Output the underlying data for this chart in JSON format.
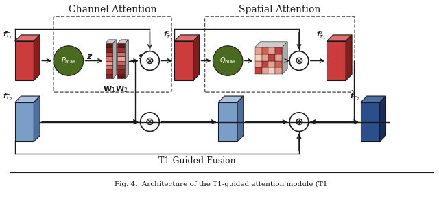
{
  "channel_attention_label": "Channel Attention",
  "spatial_attention_label": "Spatial Attention",
  "t1guided_label": "T1-Guided Fusion",
  "caption": "Fig. 4.  Architecture of the T1-guided attention module (T1",
  "bg_color": "#ffffff",
  "red_face": "#cd3c3c",
  "red_side": "#8b1a1a",
  "red_top": "#e07070",
  "blue_face_lt": "#7b9ec8",
  "blue_side_lt": "#4a6ea0",
  "blue_top_lt": "#aac0dc",
  "blue_face_dk": "#2c4e8a",
  "blue_side_dk": "#1a2e5a",
  "blue_top_dk": "#4a6ea0",
  "green_ellipse": "#4a6a20",
  "bar1_colors": [
    "#8b2020",
    "#b03030",
    "#e07070",
    "#f0a090",
    "#e07070",
    "#c04040",
    "#8b2020",
    "#701010"
  ],
  "bar2_colors": [
    "#701010",
    "#8b2020",
    "#a03030",
    "#c86060",
    "#f0a090",
    "#d07070",
    "#a03030",
    "#701010"
  ],
  "grid_colors": [
    [
      "#c04040",
      "#e8a090",
      "#f5d0c0",
      "#e8a090"
    ],
    [
      "#e8a090",
      "#c04040",
      "#e8a090",
      "#d06050"
    ],
    [
      "#f5d0c0",
      "#e8a090",
      "#c04040",
      "#e8a090"
    ],
    [
      "#e8a090",
      "#d06050",
      "#e8a090",
      "#c04040"
    ]
  ],
  "black": "#1a1a1a",
  "white": "#ffffff"
}
